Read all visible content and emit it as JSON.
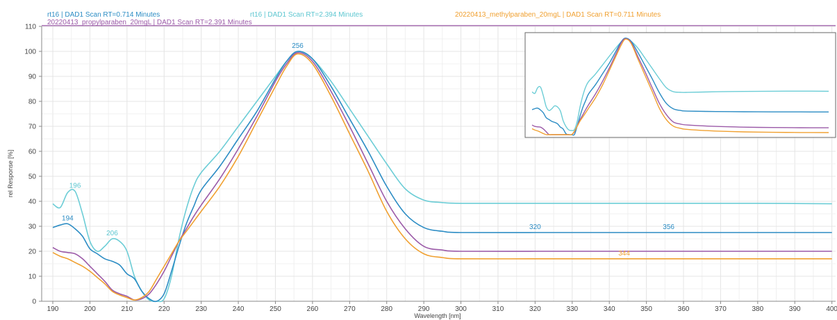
{
  "chart_data": {
    "type": "line",
    "xlabel": "Wavelength [nm]",
    "ylabel": "rel Response [%]",
    "xlim": [
      187,
      401
    ],
    "ylim": [
      0,
      110
    ],
    "x_ticks": [
      190,
      200,
      210,
      220,
      230,
      240,
      250,
      260,
      270,
      280,
      290,
      300,
      310,
      320,
      330,
      340,
      350,
      360,
      370,
      380,
      390,
      400
    ],
    "y_ticks": [
      0,
      10,
      20,
      30,
      40,
      50,
      60,
      70,
      80,
      90,
      100,
      110
    ],
    "grid": true,
    "legend": [
      {
        "text": "rt16 | DAD1 Scan RT=0.714 Minutes",
        "color": "#2b8cc4"
      },
      {
        "text": "rt16 | DAD1 Scan RT=2.394 Minutes",
        "color": "#5cc6d0"
      },
      {
        "text": "20220413_methylparaben_20mgL | DAD1 Scan RT=0.711 Minutes",
        "color": "#f0a030"
      },
      {
        "text": "20220413_propylparaben_20mgL | DAD1 Scan RT=2.391 Minutes",
        "color": "#9b5aa8"
      }
    ],
    "series": [
      {
        "name": "rt16 | DAD1 Scan RT=2.394 Minutes",
        "color": "#6ccdd6",
        "points": [
          [
            190,
            39
          ],
          [
            192,
            37.5
          ],
          [
            194,
            43.5
          ],
          [
            196,
            44
          ],
          [
            198,
            35
          ],
          [
            200,
            24
          ],
          [
            202,
            20
          ],
          [
            204,
            22
          ],
          [
            206,
            25
          ],
          [
            208,
            24
          ],
          [
            210,
            20
          ],
          [
            212,
            10
          ],
          [
            214,
            4
          ],
          [
            216,
            0.5
          ],
          [
            218,
            0
          ],
          [
            220,
            1
          ],
          [
            222,
            10
          ],
          [
            224,
            25
          ],
          [
            226,
            37
          ],
          [
            228,
            46
          ],
          [
            230,
            51.5
          ],
          [
            235,
            60
          ],
          [
            240,
            70
          ],
          [
            245,
            80
          ],
          [
            250,
            90
          ],
          [
            253,
            96
          ],
          [
            256,
            100
          ],
          [
            260,
            97
          ],
          [
            265,
            88
          ],
          [
            270,
            77
          ],
          [
            275,
            66
          ],
          [
            280,
            55
          ],
          [
            285,
            45
          ],
          [
            290,
            40.5
          ],
          [
            295,
            39.5
          ],
          [
            300,
            39.2
          ],
          [
            320,
            39.2
          ],
          [
            340,
            39.2
          ],
          [
            360,
            39.2
          ],
          [
            380,
            39.2
          ],
          [
            400,
            39
          ]
        ]
      },
      {
        "name": "rt16 | DAD1 Scan RT=0.714 Minutes",
        "color": "#2b8cc4",
        "points": [
          [
            190,
            29.5
          ],
          [
            192,
            30.5
          ],
          [
            194,
            31
          ],
          [
            196,
            29
          ],
          [
            198,
            26
          ],
          [
            200,
            21
          ],
          [
            202,
            19
          ],
          [
            204,
            17
          ],
          [
            206,
            16
          ],
          [
            208,
            14.5
          ],
          [
            210,
            11
          ],
          [
            212,
            9
          ],
          [
            214,
            4
          ],
          [
            216,
            1
          ],
          [
            218,
            0
          ],
          [
            220,
            3
          ],
          [
            222,
            12
          ],
          [
            224,
            22
          ],
          [
            226,
            31
          ],
          [
            228,
            38
          ],
          [
            230,
            44.5
          ],
          [
            235,
            54
          ],
          [
            240,
            65
          ],
          [
            245,
            76
          ],
          [
            250,
            89
          ],
          [
            253,
            96
          ],
          [
            256,
            100
          ],
          [
            260,
            97
          ],
          [
            265,
            86
          ],
          [
            270,
            73
          ],
          [
            275,
            60
          ],
          [
            280,
            46
          ],
          [
            285,
            35
          ],
          [
            290,
            29.5
          ],
          [
            295,
            28
          ],
          [
            300,
            27.5
          ],
          [
            320,
            27.5
          ],
          [
            340,
            27.5
          ],
          [
            360,
            27.5
          ],
          [
            380,
            27.5
          ],
          [
            400,
            27.5
          ]
        ]
      },
      {
        "name": "20220413_propylparaben_20mgL | DAD1 Scan RT=2.391 Minutes",
        "color": "#9b5aa8",
        "points": [
          [
            190,
            21.5
          ],
          [
            192,
            20
          ],
          [
            194,
            19.5
          ],
          [
            196,
            19
          ],
          [
            198,
            17
          ],
          [
            200,
            14
          ],
          [
            202,
            11
          ],
          [
            204,
            8
          ],
          [
            206,
            4.5
          ],
          [
            208,
            3
          ],
          [
            210,
            2
          ],
          [
            212,
            0.5
          ],
          [
            214,
            1
          ],
          [
            216,
            3
          ],
          [
            218,
            7
          ],
          [
            220,
            12
          ],
          [
            222,
            18
          ],
          [
            224,
            24
          ],
          [
            226,
            29
          ],
          [
            228,
            34
          ],
          [
            230,
            38.5
          ],
          [
            235,
            49
          ],
          [
            240,
            61
          ],
          [
            245,
            74
          ],
          [
            250,
            88
          ],
          [
            253,
            95
          ],
          [
            256,
            99.5
          ],
          [
            260,
            96
          ],
          [
            265,
            84
          ],
          [
            270,
            70
          ],
          [
            275,
            55
          ],
          [
            280,
            40
          ],
          [
            285,
            29
          ],
          [
            290,
            22
          ],
          [
            295,
            20.5
          ],
          [
            300,
            20
          ],
          [
            320,
            20
          ],
          [
            340,
            20
          ],
          [
            360,
            20
          ],
          [
            380,
            20
          ],
          [
            400,
            20
          ]
        ]
      },
      {
        "name": "20220413_methylparaben_20mgL | DAD1 Scan RT=0.711 Minutes",
        "color": "#f0a030",
        "points": [
          [
            190,
            19.5
          ],
          [
            192,
            18
          ],
          [
            194,
            17
          ],
          [
            196,
            15.5
          ],
          [
            198,
            14
          ],
          [
            200,
            12
          ],
          [
            202,
            9.5
          ],
          [
            204,
            7
          ],
          [
            206,
            4
          ],
          [
            208,
            2.5
          ],
          [
            210,
            1.5
          ],
          [
            212,
            0.5
          ],
          [
            214,
            1.5
          ],
          [
            216,
            4
          ],
          [
            218,
            9
          ],
          [
            220,
            14
          ],
          [
            222,
            19
          ],
          [
            224,
            24
          ],
          [
            226,
            28
          ],
          [
            228,
            32
          ],
          [
            230,
            36
          ],
          [
            235,
            46
          ],
          [
            240,
            58
          ],
          [
            245,
            72
          ],
          [
            250,
            86
          ],
          [
            253,
            94
          ],
          [
            256,
            99
          ],
          [
            260,
            95
          ],
          [
            265,
            82
          ],
          [
            270,
            67
          ],
          [
            275,
            52
          ],
          [
            280,
            36
          ],
          [
            285,
            25
          ],
          [
            290,
            19
          ],
          [
            295,
            17.5
          ],
          [
            300,
            17
          ],
          [
            320,
            17
          ],
          [
            340,
            17
          ],
          [
            360,
            17
          ],
          [
            380,
            17
          ],
          [
            400,
            17
          ]
        ]
      }
    ],
    "annotations": [
      {
        "text": "256",
        "x": 256,
        "y": 100,
        "color": "#2b8cc4"
      },
      {
        "text": "196",
        "x": 196,
        "y": 44,
        "color": "#5cc6d0"
      },
      {
        "text": "194",
        "x": 194,
        "y": 31,
        "color": "#2b8cc4"
      },
      {
        "text": "206",
        "x": 206,
        "y": 25,
        "color": "#5cc6d0"
      },
      {
        "text": "320",
        "x": 320,
        "y": 27.5,
        "color": "#2b8cc4"
      },
      {
        "text": "356",
        "x": 356,
        "y": 27.5,
        "color": "#2b8cc4"
      },
      {
        "text": "344",
        "x": 344,
        "y": 17,
        "color": "#f0a030"
      }
    ],
    "inset": {
      "description_type": "overlay",
      "offsets": [
        -7,
        0,
        7,
        14
      ]
    }
  }
}
